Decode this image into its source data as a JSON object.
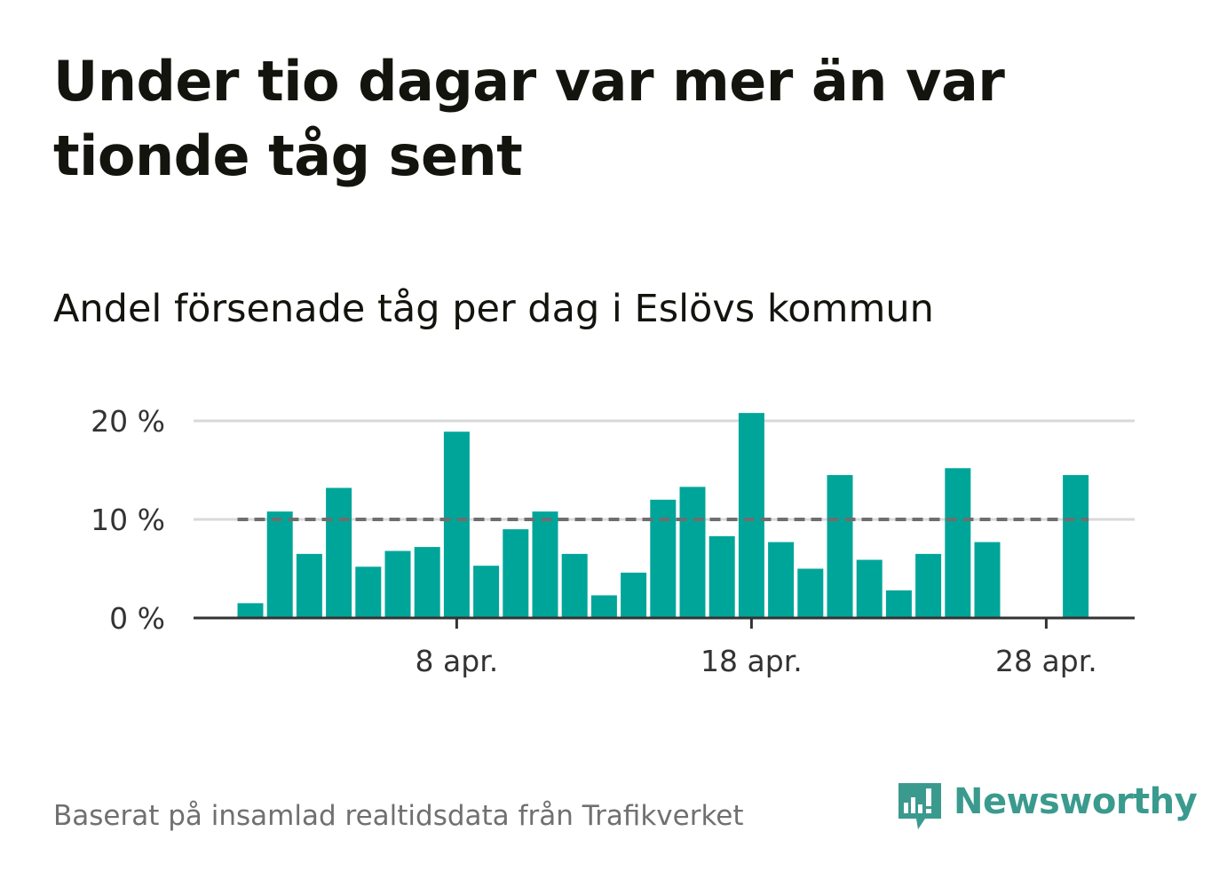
{
  "title": "Under tio dagar var mer än var tionde tåg sent",
  "subtitle": "Andel försenade tåg per dag i Eslövs kommun",
  "source": "Baserat på insamlad realtidsdata från Trafikverket",
  "logo": {
    "text": "Newsworthy",
    "icon": "newsworthy-chart-bubble-icon",
    "color": "#3b9a8e"
  },
  "colors": {
    "bar": "#00a59a",
    "reference_line": "#6e6e6e",
    "grid": "#d9d9d9",
    "axis": "#333333"
  },
  "chart_data": {
    "type": "bar",
    "x": [
      "2020-04-01",
      "2020-04-02",
      "2020-04-03",
      "2020-04-04",
      "2020-04-05",
      "2020-04-06",
      "2020-04-07",
      "2020-04-08",
      "2020-04-09",
      "2020-04-10",
      "2020-04-11",
      "2020-04-12",
      "2020-04-13",
      "2020-04-14",
      "2020-04-15",
      "2020-04-16",
      "2020-04-17",
      "2020-04-18",
      "2020-04-19",
      "2020-04-20",
      "2020-04-21",
      "2020-04-22",
      "2020-04-23",
      "2020-04-24",
      "2020-04-25",
      "2020-04-26",
      "2020-04-27",
      "2020-04-28",
      "2020-04-29"
    ],
    "values": [
      1.5,
      10.8,
      6.5,
      13.2,
      5.2,
      6.8,
      7.2,
      18.9,
      5.3,
      9.0,
      10.8,
      6.5,
      2.3,
      4.6,
      12.0,
      13.3,
      8.3,
      20.8,
      7.7,
      5.0,
      14.5,
      5.9,
      2.8,
      6.5,
      15.2,
      7.7,
      0,
      0,
      14.5
    ],
    "reference_line": 10,
    "ylim": [
      0,
      21
    ],
    "yticks": [
      0,
      10,
      20
    ],
    "ytick_labels": [
      "0 %",
      "10 %",
      "20 %"
    ],
    "xticks": [
      "2020-04-08",
      "2020-04-18",
      "2020-04-28"
    ],
    "xtick_labels": [
      "8 apr.",
      "18 apr.",
      "28 apr."
    ],
    "grid": true,
    "legend": "none"
  }
}
